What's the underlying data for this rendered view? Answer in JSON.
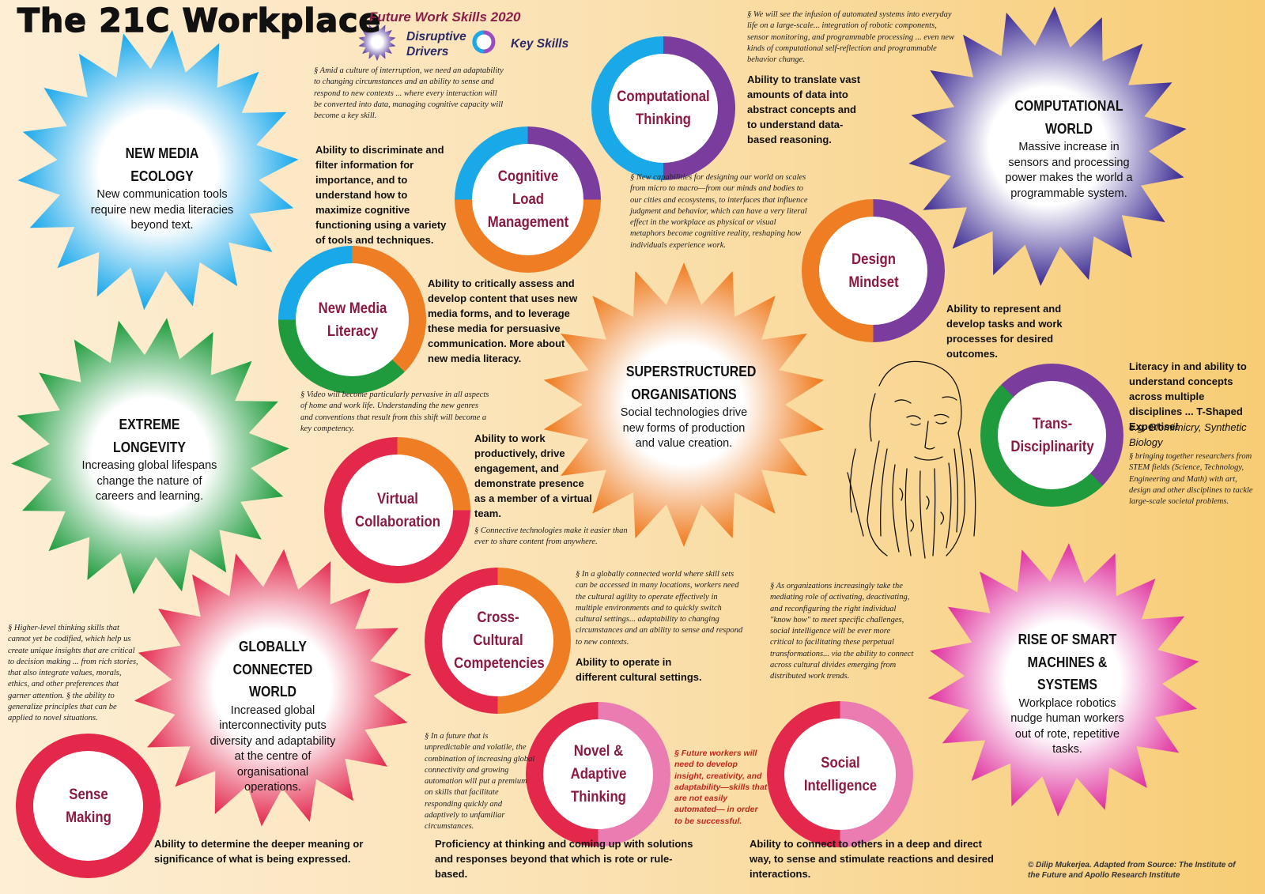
{
  "header": {
    "title": "The 21C Workplace",
    "legend_title": "Future Work Skills 2020",
    "legend_drivers": "Disruptive Drivers",
    "legend_skills": "Key Skills"
  },
  "drivers": {
    "new_media": {
      "title": "NEW MEDIA ECOLOGY",
      "text": "New communication tools require new media literacies beyond text.",
      "color": "#1aa9e8"
    },
    "computational": {
      "title": "COMPUTATIONAL WORLD",
      "text": "Massive increase in sensors and processing power makes the world a programmable system.",
      "color": "#3a2c8f"
    },
    "longevity": {
      "title": "EXTREME LONGEVITY",
      "text": "Increasing global lifespans change the nature of careers and learning.",
      "color": "#1f9a3c"
    },
    "superstructured": {
      "title": "SUPERSTRUCTURED ORGANISATIONS",
      "text": "Social technologies drive new forms of production and value creation.",
      "color": "#ee7a1e"
    },
    "global": {
      "title": "GLOBALLY CONNECTED WORLD",
      "text": "Increased global interconnectivity puts diversity and adaptability at the centre of organisational operations.",
      "color": "#e32a4e"
    },
    "smart": {
      "title": "RISE OF SMART MACHINES & SYSTEMS",
      "text": "Workplace robotics nudge human workers out of rote, repetitive tasks.",
      "color": "#e0339d"
    }
  },
  "skills": {
    "computational_thinking": {
      "label": "Computational Thinking",
      "description": "Ability to translate vast amounts of data into abstract concepts and to understand data-based reasoning.",
      "note": "§ We will see the infusion of automated systems into everyday life on a large-scale... integration of robotic components, sensor monitoring, and programmable processing ... even new kinds of computational self-reflection and programmable behavior change."
    },
    "cognitive_load": {
      "label": "Cognitive Load Management",
      "description": "Ability to discriminate and filter information for importance, and to understand how to maximize cognitive functioning using a variety of tools and techniques.",
      "note": "§ Amid a culture of interruption, we need an adaptability to changing circumstances and an ability to sense and respond to new contexts ... where every interaction will be converted into data, managing cognitive capacity will become a key skill."
    },
    "design_mindset": {
      "label": "Design Mindset",
      "description": "Ability to represent and develop tasks and work processes for desired outcomes.",
      "note": "§ New capabilities for designing our world on scales from micro to macro—from our minds and bodies to our cities and ecosystems, to interfaces that influence judgment and behavior, which can have a very literal effect in the workplace as physical or visual metaphors become cognitive reality, reshaping how individuals experience work."
    },
    "new_media_literacy": {
      "label": "New Media Literacy",
      "description": "Ability to critically assess and develop content that uses new media forms, and to leverage these media for persuasive communication. More about new media literacy.",
      "note": "§ Video will become particularly pervasive in all aspects of home and work life. Understanding the new genres and conventions that result from this shift will become a key competency."
    },
    "virtual_collaboration": {
      "label": "Virtual Collaboration",
      "description": "Ability to work productively, drive engagement, and demonstrate presence as a member of a virtual team.",
      "note": "§ Connective technologies make it easier than ever to share content from anywhere."
    },
    "transdisciplinarity": {
      "label": "Trans-Disciplinarity",
      "description": "Literacy in and ability to understand concepts across multiple disciplines ... T-Shaped Expertise!",
      "example": "e.g. Biomimicry, Synthetic Biology",
      "note": "§ bringing together researchers from STEM fields (Science, Technology, Engineering and Math) with art, design and other disciplines to tackle large-scale societal problems."
    },
    "cross_cultural": {
      "label": "Cross-Cultural Competencies",
      "description": "Ability to operate in different cultural settings.",
      "note": "§ In a globally connected world where skill sets can be accessed in many locations, workers need the cultural agility to operate effectively in multiple environments and to quickly switch cultural settings... adaptability to changing circumstances and an ability to sense and respond to new contexts."
    },
    "sense_making": {
      "label": "Sense Making",
      "description": "Ability to determine the deeper meaning or significance of what is being expressed.",
      "note": "§ Higher-level thinking skills that cannot yet be codified, which help us create unique insights that are critical to decision making ... from rich stories, that also integrate values, morals, ethics, and other preferences that garner attention. § the ability to generalize principles that can be applied to novel situations."
    },
    "novel_adaptive": {
      "label": "Novel & Adaptive Thinking",
      "description": "Proficiency at thinking and coming up with solutions and responses beyond that which is rote or rule-based.",
      "note": "§ In a future that is unpredictable and volatile, the combination of increasing global connectivity and growing automation will put a premium on skills that facilitate responding quickly and adaptively to unfamiliar circumstances.",
      "note_red": "§ Future workers will need to develop insight, creativity, and adaptability—skills that are not easily automated— in order to be successful."
    },
    "social_intelligence": {
      "label": "Social Intelligence",
      "description": "Ability to connect to others in a deep and direct way, to sense and stimulate reactions and desired interactions.",
      "note": "§ As organizations increasingly take the mediating role of activating, deactivating, and reconfiguring the right individual \"know how\" to meet specific challenges, social intelligence will be ever more critical to facilitating these perpetual transformations... via the ability to connect across cultural divides emerging from distributed work trends."
    }
  },
  "credit": "© Dilip Mukerjea. Adapted from Source: The Institute of the Future and Apollo Research Institute"
}
